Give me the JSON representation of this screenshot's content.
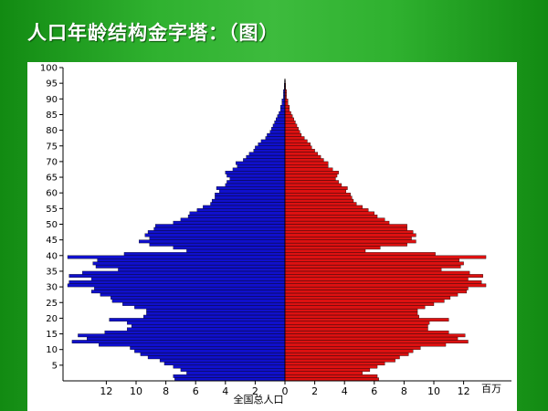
{
  "slide": {
    "title": "人口年龄结构金字塔：（图）"
  },
  "chart_data": {
    "type": "bar",
    "orientation": "horizontal-pyramid",
    "xlabel": "全国总人口",
    "x_unit": "百万",
    "xlim": [
      -14,
      14
    ],
    "x_ticks": [
      12,
      10,
      8,
      6,
      4,
      2,
      0,
      2,
      4,
      6,
      8,
      10,
      12
    ],
    "ylim": [
      0,
      100
    ],
    "y_ticks": [
      5,
      10,
      15,
      20,
      25,
      30,
      35,
      40,
      45,
      50,
      55,
      60,
      65,
      70,
      75,
      80,
      85,
      90,
      95,
      100
    ],
    "colors": {
      "left": "#1010cc",
      "right": "#dd1111"
    },
    "ages": [
      0,
      1,
      2,
      3,
      4,
      5,
      6,
      7,
      8,
      9,
      10,
      11,
      12,
      13,
      14,
      15,
      16,
      17,
      18,
      19,
      20,
      21,
      22,
      23,
      24,
      25,
      26,
      27,
      28,
      29,
      30,
      31,
      32,
      33,
      34,
      35,
      36,
      37,
      38,
      39,
      40,
      41,
      42,
      43,
      44,
      45,
      46,
      47,
      48,
      49,
      50,
      51,
      52,
      53,
      54,
      55,
      56,
      57,
      58,
      59,
      60,
      61,
      62,
      63,
      64,
      65,
      66,
      67,
      68,
      69,
      70,
      71,
      72,
      73,
      74,
      75,
      76,
      77,
      78,
      79,
      80,
      81,
      82,
      83,
      84,
      85,
      86,
      87,
      88,
      89,
      90,
      91,
      92,
      93,
      94,
      95
    ],
    "series": [
      {
        "values": [
          7.4,
          7.5,
          6.6,
          7.0,
          7.5,
          8.1,
          8.4,
          9.2,
          9.7,
          10.1,
          10.4,
          12.5,
          14.3,
          13.3,
          13.9,
          12.1,
          10.6,
          10.3,
          10.6,
          11.8,
          9.5,
          9.3,
          9.3,
          10.1,
          10.9,
          11.6,
          11.7,
          12.4,
          13.0,
          12.8,
          14.6,
          14.5,
          13.0,
          14.5,
          13.6,
          11.2,
          12.7,
          12.9,
          12.6,
          14.6,
          10.8,
          6.6,
          7.5,
          9.1,
          9.8,
          9.1,
          9.4,
          9.2,
          8.8,
          8.7,
          7.5,
          7.0,
          6.5,
          6.4,
          5.9,
          5.5,
          5.0,
          4.9,
          4.7,
          4.7,
          4.4,
          4.6,
          4.0,
          3.9,
          3.7,
          3.9,
          4.0,
          3.5,
          3.2,
          3.3,
          2.8,
          2.6,
          2.4,
          2.1,
          2.0,
          1.8,
          1.6,
          1.3,
          1.2,
          1.0,
          0.9,
          0.8,
          0.7,
          0.6,
          0.5,
          0.4,
          0.3,
          0.3,
          0.2,
          0.2,
          0.1,
          0.1,
          0.1,
          0.05,
          0.05,
          0.03
        ]
      },
      {
        "values": [
          6.3,
          6.2,
          5.2,
          5.7,
          6.2,
          6.7,
          7.4,
          7.7,
          8.3,
          8.6,
          9.1,
          10.8,
          12.3,
          11.6,
          12.1,
          11.0,
          9.6,
          9.6,
          9.7,
          11.0,
          9.0,
          8.9,
          8.9,
          9.4,
          10.0,
          10.7,
          11.1,
          11.6,
          12.2,
          12.3,
          13.5,
          13.2,
          12.3,
          13.3,
          12.4,
          10.5,
          11.8,
          12.0,
          11.7,
          13.5,
          10.1,
          5.4,
          6.4,
          8.2,
          8.8,
          8.5,
          8.8,
          8.6,
          8.2,
          8.2,
          7.0,
          6.7,
          6.2,
          6.0,
          5.6,
          5.2,
          4.8,
          4.6,
          4.5,
          4.4,
          4.1,
          4.2,
          3.8,
          3.6,
          3.4,
          3.5,
          3.6,
          3.2,
          2.9,
          2.9,
          2.6,
          2.4,
          2.2,
          2.0,
          1.8,
          1.7,
          1.5,
          1.3,
          1.1,
          1.0,
          0.9,
          0.8,
          0.7,
          0.6,
          0.5,
          0.4,
          0.3,
          0.3,
          0.2,
          0.2,
          0.1,
          0.1,
          0.1,
          0.05,
          0.05,
          0.03
        ]
      }
    ]
  }
}
